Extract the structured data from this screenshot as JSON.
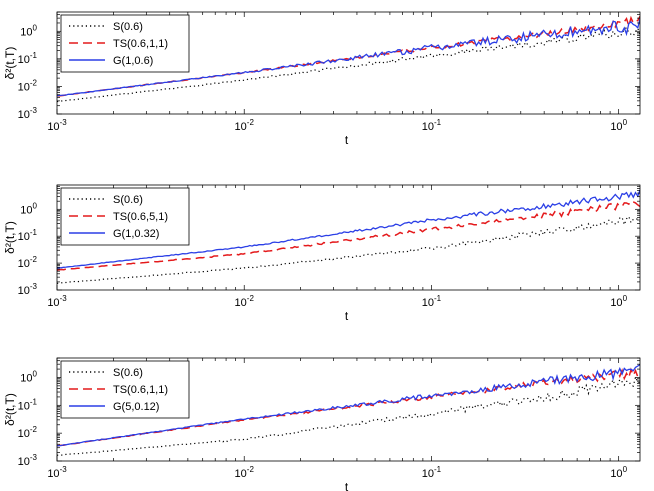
{
  "colors": {
    "S": "#000000",
    "TS": "#e41a1c",
    "G": "#2b3fe6"
  },
  "chart_data": [
    {
      "type": "line",
      "xscale": "log",
      "yscale": "log",
      "xlabel": "t",
      "ylabel": "δ²(t,T)",
      "xlim": [
        0.001,
        1.3
      ],
      "ylim": [
        0.001,
        5
      ],
      "legend_position": "top-left",
      "xticks": [
        {
          "v": 0.001,
          "b": "10",
          "e": "-3"
        },
        {
          "v": 0.01,
          "b": "10",
          "e": "-2"
        },
        {
          "v": 0.1,
          "b": "10",
          "e": "-1"
        },
        {
          "v": 1,
          "b": "10",
          "e": "0"
        }
      ],
      "yticks": [
        {
          "v": 0.001,
          "b": "10",
          "e": "-3"
        },
        {
          "v": 0.01,
          "b": "10",
          "e": "-2"
        },
        {
          "v": 0.1,
          "b": "10",
          "e": "-1"
        },
        {
          "v": 1,
          "b": "10",
          "e": "0"
        }
      ],
      "series": [
        {
          "key": "S",
          "name": "S(0.6)",
          "style": "dotted",
          "anchors": [
            [
              0.001,
              0.0028
            ],
            [
              0.01,
              0.017
            ],
            [
              0.1,
              0.13
            ],
            [
              0.5,
              0.5
            ],
            [
              1.3,
              1.1
            ]
          ],
          "noise": 0.18
        },
        {
          "key": "TS",
          "name": "TS(0.6,1,1)",
          "style": "dashed",
          "anchors": [
            [
              0.001,
              0.0045
            ],
            [
              0.01,
              0.032
            ],
            [
              0.1,
              0.25
            ],
            [
              0.5,
              1.0
            ],
            [
              1.3,
              2.5
            ]
          ],
          "noise": 0.14
        },
        {
          "key": "G",
          "name": "G(1,0.6)",
          "style": "solid",
          "anchors": [
            [
              0.001,
              0.0045
            ],
            [
              0.01,
              0.032
            ],
            [
              0.1,
              0.25
            ],
            [
              0.5,
              0.9
            ],
            [
              1.3,
              1.7
            ]
          ],
          "noise": 0.3
        }
      ]
    },
    {
      "type": "line",
      "xscale": "log",
      "yscale": "log",
      "xlabel": "t",
      "ylabel": "δ²(t,T)",
      "xlim": [
        0.001,
        1.3
      ],
      "ylim": [
        0.001,
        8
      ],
      "legend_position": "top-left",
      "xticks": [
        {
          "v": 0.001,
          "b": "10",
          "e": "-3"
        },
        {
          "v": 0.01,
          "b": "10",
          "e": "-2"
        },
        {
          "v": 0.1,
          "b": "10",
          "e": "-1"
        },
        {
          "v": 1,
          "b": "10",
          "e": "0"
        }
      ],
      "yticks": [
        {
          "v": 0.001,
          "b": "10",
          "e": "-3"
        },
        {
          "v": 0.01,
          "b": "10",
          "e": "-2"
        },
        {
          "v": 0.1,
          "b": "10",
          "e": "-1"
        },
        {
          "v": 1,
          "b": "10",
          "e": "0"
        }
      ],
      "series": [
        {
          "key": "S",
          "name": "S(0.6)",
          "style": "dotted",
          "anchors": [
            [
              0.001,
              0.0018
            ],
            [
              0.01,
              0.0065
            ],
            [
              0.1,
              0.035
            ],
            [
              0.5,
              0.18
            ],
            [
              1.3,
              0.45
            ]
          ],
          "noise": 0.15
        },
        {
          "key": "TS",
          "name": "TS(0.6,5,1)",
          "style": "dashed",
          "anchors": [
            [
              0.001,
              0.0055
            ],
            [
              0.01,
              0.022
            ],
            [
              0.1,
              0.18
            ],
            [
              0.5,
              0.7
            ],
            [
              1.3,
              1.7
            ]
          ],
          "noise": 0.13
        },
        {
          "key": "G",
          "name": "G(1,0.32)",
          "style": "solid",
          "anchors": [
            [
              0.001,
              0.0065
            ],
            [
              0.01,
              0.04
            ],
            [
              0.1,
              0.4
            ],
            [
              0.5,
              1.6
            ],
            [
              1.3,
              4.0
            ]
          ],
          "noise": 0.13
        }
      ]
    },
    {
      "type": "line",
      "xscale": "log",
      "yscale": "log",
      "xlabel": "t",
      "ylabel": "δ²(t,T)",
      "xlim": [
        0.001,
        1.3
      ],
      "ylim": [
        0.001,
        5
      ],
      "legend_position": "top-left",
      "xticks": [
        {
          "v": 0.001,
          "b": "10",
          "e": "-3"
        },
        {
          "v": 0.01,
          "b": "10",
          "e": "-2"
        },
        {
          "v": 0.1,
          "b": "10",
          "e": "-1"
        },
        {
          "v": 1,
          "b": "10",
          "e": "0"
        }
      ],
      "yticks": [
        {
          "v": 0.001,
          "b": "10",
          "e": "-3"
        },
        {
          "v": 0.01,
          "b": "10",
          "e": "-2"
        },
        {
          "v": 0.1,
          "b": "10",
          "e": "-1"
        },
        {
          "v": 1,
          "b": "10",
          "e": "0"
        }
      ],
      "series": [
        {
          "key": "S",
          "name": "S(0.6)",
          "style": "dotted",
          "anchors": [
            [
              0.001,
              0.0016
            ],
            [
              0.01,
              0.006
            ],
            [
              0.1,
              0.05
            ],
            [
              0.5,
              0.25
            ],
            [
              1.3,
              0.9
            ]
          ],
          "noise": 0.22
        },
        {
          "key": "TS",
          "name": "TS(0.6,1,1)",
          "style": "dashed",
          "anchors": [
            [
              0.001,
              0.0035
            ],
            [
              0.01,
              0.03
            ],
            [
              0.1,
              0.2
            ],
            [
              0.5,
              0.75
            ],
            [
              1.3,
              1.5
            ]
          ],
          "noise": 0.16
        },
        {
          "key": "G",
          "name": "G(5,0.12)",
          "style": "solid",
          "anchors": [
            [
              0.001,
              0.0035
            ],
            [
              0.01,
              0.032
            ],
            [
              0.1,
              0.22
            ],
            [
              0.5,
              0.85
            ],
            [
              1.3,
              1.8
            ]
          ],
          "noise": 0.2
        }
      ]
    }
  ]
}
